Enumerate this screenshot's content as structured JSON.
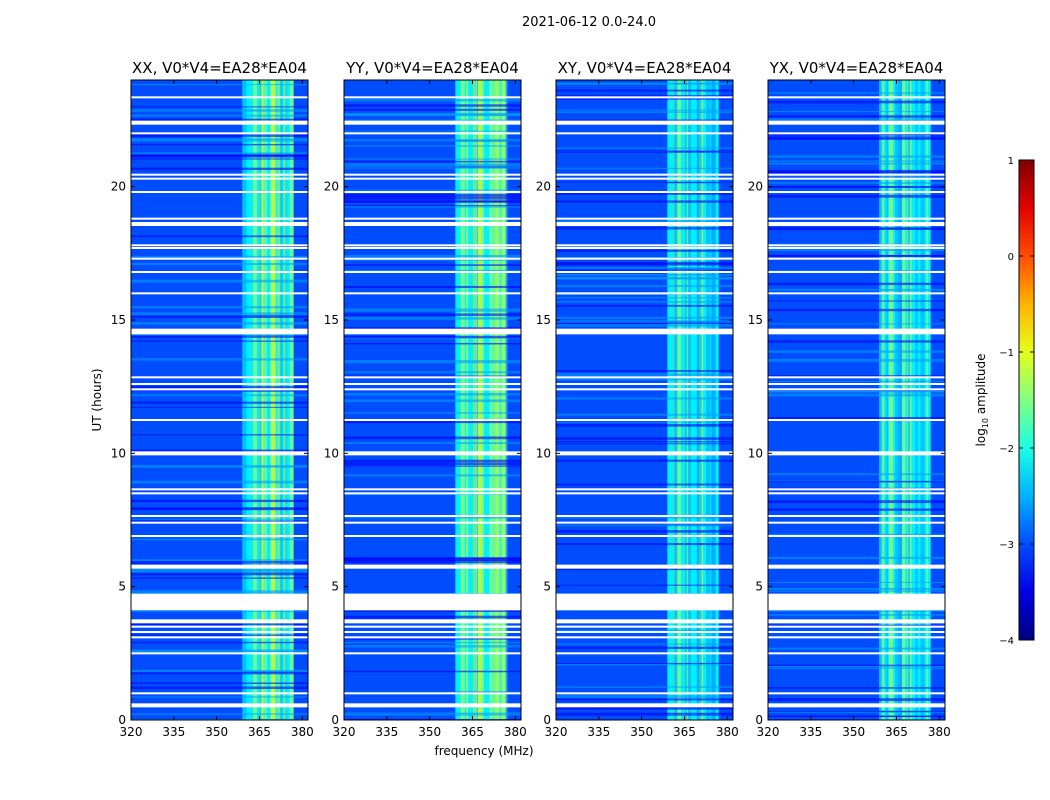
{
  "figure_title": "2021-06-12 0.0-24.0",
  "chart_data": {
    "type": "heatmap",
    "title": "2021-06-12 0.0-24.0",
    "xlabel": "frequency (MHz)",
    "ylabel": "UT (hours)",
    "xlim": [
      320,
      382
    ],
    "ylim": [
      0,
      24
    ],
    "x_ticks": [
      320,
      335,
      350,
      365,
      380
    ],
    "x_tick_labels": [
      "320",
      "335",
      "350",
      "365",
      "380"
    ],
    "y_ticks": [
      0,
      5,
      10,
      15,
      20
    ],
    "y_tick_labels": [
      "0",
      "5",
      "10",
      "15",
      "20"
    ],
    "panels": [
      {
        "title": "XX, V0*V4=EA28*EA04"
      },
      {
        "title": "YY, V0*V4=EA28*EA04"
      },
      {
        "title": "XY, V0*V4=EA28*EA04"
      },
      {
        "title": "YX, V0*V4=EA28*EA04"
      }
    ],
    "ylabel_panel": 0,
    "xlabel_panel": 1,
    "bright_band_mhz": [
      359,
      377
    ],
    "background_log10_amplitude": -3.0,
    "band_log10_amplitude": -2.2,
    "flagged_hours": [
      0.55,
      1.0,
      2.5,
      3.1,
      3.3,
      3.5,
      3.7,
      4.15,
      4.3,
      4.5,
      4.6,
      4.7,
      5.75,
      6.9,
      7.4,
      7.65,
      8.5,
      8.65,
      10.0,
      11.25,
      12.4,
      12.6,
      12.85,
      14.5,
      14.6,
      16.0,
      16.8,
      17.3,
      17.7,
      17.8,
      18.6,
      18.8,
      19.8,
      20.3,
      20.45,
      22.0,
      22.4,
      23.35
    ],
    "colorbar": {
      "label": "log10 amplitude",
      "label_base": "log",
      "label_sub": "10",
      "label_rest": " amplitude",
      "range": [
        -4,
        1
      ],
      "ticks": [
        "1",
        "0",
        "−1",
        "−2",
        "−3",
        "−4"
      ],
      "colormap": "jet"
    }
  }
}
